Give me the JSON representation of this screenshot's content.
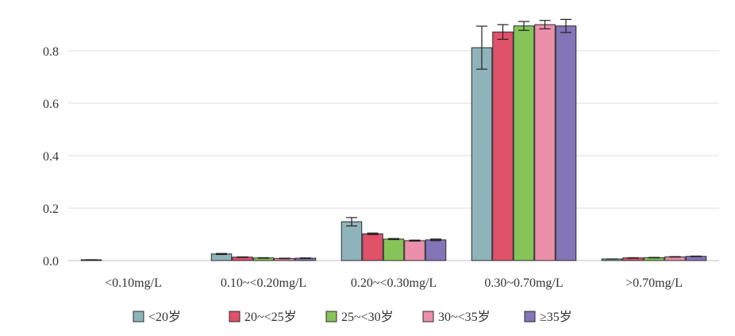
{
  "chart_data": {
    "type": "bar",
    "categories": [
      "<0.10mg/L",
      "0.10~<0.20mg/L",
      "0.20~<0.30mg/L",
      "0.30~0.70mg/L",
      ">0.70mg/L"
    ],
    "ylim": [
      0,
      0.93
    ],
    "yticks": [
      "0.0",
      "0.2",
      "0.4",
      "0.6",
      "0.8"
    ],
    "grid": true,
    "legend_position": "bottom",
    "error_bars": true,
    "series": [
      {
        "name": "<20岁",
        "color": "#8fb3ba",
        "values": [
          0.003,
          0.025,
          0.148,
          0.812,
          0.006
        ],
        "errors": [
          0.0,
          0.002,
          0.016,
          0.082,
          0.0
        ]
      },
      {
        "name": "20~<25岁",
        "color": "#e0516a",
        "values": [
          0.0,
          0.013,
          0.102,
          0.872,
          0.01
        ],
        "errors": [
          0.0,
          0.001,
          0.003,
          0.028,
          0.001
        ]
      },
      {
        "name": "25~<30岁",
        "color": "#86c45a",
        "values": [
          0.0,
          0.01,
          0.082,
          0.895,
          0.011
        ],
        "errors": [
          0.0,
          0.001,
          0.002,
          0.017,
          0.001
        ]
      },
      {
        "name": "30~<35岁",
        "color": "#ec8faa",
        "values": [
          0.0,
          0.008,
          0.076,
          0.9,
          0.014
        ],
        "errors": [
          0.0,
          0.001,
          0.002,
          0.016,
          0.001
        ]
      },
      {
        "name": "≥35岁",
        "color": "#8474b8",
        "values": [
          0.0,
          0.009,
          0.079,
          0.895,
          0.016
        ],
        "errors": [
          0.0,
          0.001,
          0.003,
          0.025,
          0.001
        ]
      }
    ]
  }
}
